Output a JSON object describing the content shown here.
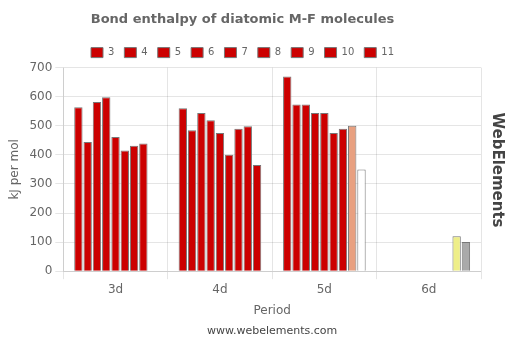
{
  "chart_data": {
    "type": "bar",
    "title": "Bond enthalpy of diatomic M-F molecules",
    "x_label": "Period",
    "y_label": "kJ per mol",
    "categories": [
      "3d",
      "4d",
      "5d",
      "6d"
    ],
    "series": [
      {
        "name": "3",
        "colors": [
          "#CC0000",
          "#CC0000",
          "#CC0000",
          "#CC0000"
        ],
        "values": [
          564,
          560,
          669,
          0
        ]
      },
      {
        "name": "4",
        "colors": [
          "#CC0000",
          "#CC0000",
          "#CC0000",
          "#CC0000"
        ],
        "values": [
          444,
          485,
          573,
          0
        ]
      },
      {
        "name": "5",
        "colors": [
          "#CC0000",
          "#CC0000",
          "#CC0000",
          "#CC0000"
        ],
        "values": [
          582,
          544,
          573,
          0
        ]
      },
      {
        "name": "6",
        "colors": [
          "#CC0000",
          "#CC0000",
          "#CC0000",
          "#CC0000"
        ],
        "values": [
          598,
          519,
          544,
          0
        ]
      },
      {
        "name": "7",
        "colors": [
          "#CC0000",
          "#CC0000",
          "#CC0000",
          "#CC0000"
        ],
        "values": [
          461,
          475,
          544,
          0
        ]
      },
      {
        "name": "8",
        "colors": [
          "#CC0000",
          "#CC0000",
          "#CC0000",
          "#CC0000"
        ],
        "values": [
          415,
          400,
          475,
          0
        ]
      },
      {
        "name": "9",
        "colors": [
          "#CC0000",
          "#CC0000",
          "#CC0000",
          "#CC0000"
        ],
        "values": [
          431,
          490,
          490,
          0
        ]
      },
      {
        "name": "10",
        "colors": [
          "#CC0000",
          "#CC0000",
          "#E8A080",
          "#EEEE88"
        ],
        "values": [
          439,
          498,
          500,
          120
        ]
      },
      {
        "name": "11",
        "colors": [
          "#CC0000",
          "#CC0000",
          "#FFFFFF",
          "#AAAAAA"
        ],
        "values": [
          0,
          365,
          350,
          100
        ]
      }
    ],
    "ylim": [
      0,
      700
    ],
    "yticks": [
      0,
      100,
      200,
      300,
      400,
      500,
      600,
      700
    ],
    "grid": true,
    "legend": "top",
    "annotations": [
      {
        "text": "www.webelements.com"
      },
      {
        "text": "WebElements"
      }
    ]
  }
}
